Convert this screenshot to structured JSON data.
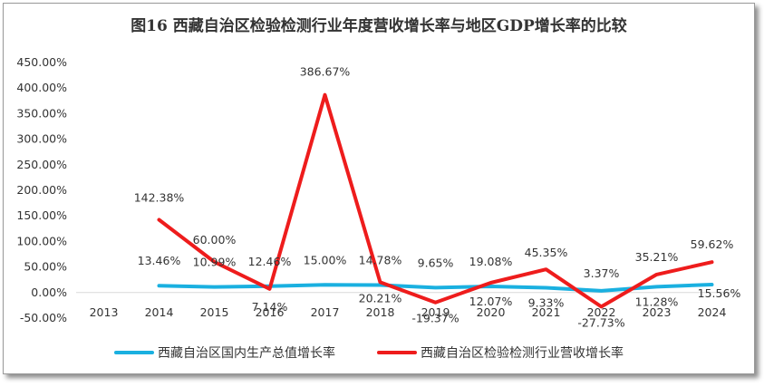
{
  "chart_data": {
    "type": "line",
    "title": "图16  西藏自治区检验检测行业年度营收增长率与地区GDP增长率的比较",
    "categories": [
      "2013",
      "2014",
      "2015",
      "2016",
      "2017",
      "2018",
      "2019",
      "2020",
      "2021",
      "2022",
      "2023",
      "2024"
    ],
    "y_ticks": [
      "450.00%",
      "400.00%",
      "350.00%",
      "300.00%",
      "250.00%",
      "200.00%",
      "150.00%",
      "100.00%",
      "50.00%",
      "0.00%",
      "-50.00%"
    ],
    "ylim": [
      -50,
      450
    ],
    "grid": false,
    "legend_position": "bottom",
    "series": [
      {
        "name": "西藏自治区国内生产总值增长率",
        "color": "#1ab0e0",
        "values": [
          null,
          13.46,
          10.99,
          12.46,
          15.0,
          14.78,
          9.65,
          12.07,
          9.33,
          3.37,
          11.28,
          15.56
        ],
        "labels": [
          null,
          "13.46%",
          "10.99%",
          "12.46%",
          "15.00%",
          "14.78%",
          "9.65%",
          "12.07%",
          "9.33%",
          "3.37%",
          "11.28%",
          "15.56%"
        ]
      },
      {
        "name": "西藏自治区检验检测行业营收增长率",
        "color": "#ee1c1c",
        "values": [
          null,
          142.38,
          60.0,
          7.14,
          386.67,
          20.21,
          -19.37,
          19.08,
          45.35,
          -27.73,
          35.21,
          59.62
        ],
        "labels": [
          null,
          "142.38%",
          "60.00%",
          "7.14%",
          "386.67%",
          "20.21%",
          "-19.37%",
          "19.08%",
          "45.35%",
          "-27.73%",
          "35.21%",
          "59.62%"
        ]
      }
    ]
  }
}
